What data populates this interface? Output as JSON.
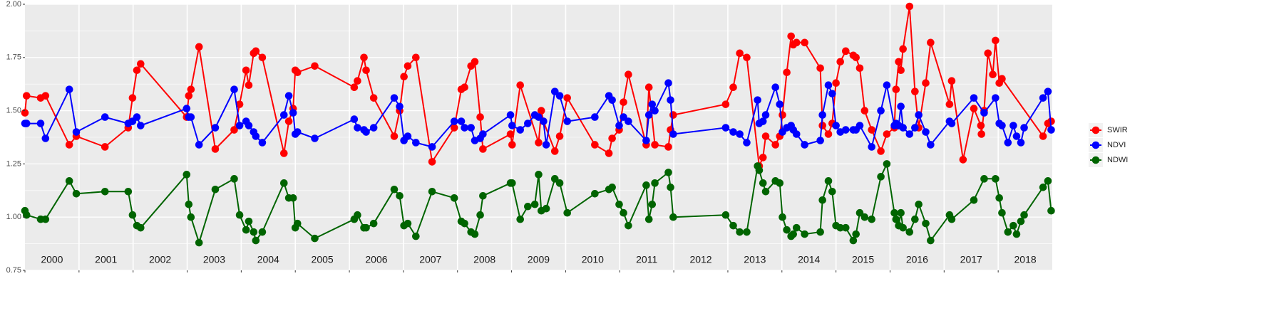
{
  "chart_data": {
    "type": "line",
    "xlim": [
      2000,
      2019
    ],
    "xticks": [
      2000,
      2001,
      2002,
      2003,
      2004,
      2005,
      2006,
      2007,
      2008,
      2009,
      2010,
      2011,
      2012,
      2013,
      2014,
      2015,
      2016,
      2017,
      2018
    ],
    "ylim": [
      0.75,
      2.0
    ],
    "yticks": [
      0.75,
      {
        "value": 1.0,
        "label": "1.00"
      },
      1.25,
      {
        "value": 1.5,
        "label": "1.50"
      },
      1.75,
      {
        "value": 2.0,
        "label": "2.00"
      }
    ],
    "yticks_minor": [
      0.875,
      1.125,
      1.375,
      1.625,
      1.875
    ],
    "grid": true,
    "legend": "right",
    "series": [
      {
        "name": "SWIR",
        "color": "#ff0000",
        "x": [
          2000.0,
          2000.03,
          2000.29,
          2000.38,
          2000.82,
          2000.95,
          2001.48,
          2001.91,
          2001.99,
          2002.07,
          2002.14,
          2002.99,
          2003.03,
          2003.07,
          2003.22,
          2003.52,
          2003.87,
          2003.97,
          2004.09,
          2004.14,
          2004.23,
          2004.27,
          2004.39,
          2004.79,
          2004.88,
          2004.96,
          2005.0,
          2005.04,
          2005.36,
          2006.09,
          2006.15,
          2006.27,
          2006.31,
          2006.45,
          2006.83,
          2006.93,
          2007.01,
          2007.08,
          2007.23,
          2007.53,
          2007.94,
          2008.07,
          2008.13,
          2008.25,
          2008.32,
          2008.42,
          2008.47,
          2008.98,
          2009.01,
          2009.16,
          2009.5,
          2009.55,
          2009.59,
          2009.8,
          2009.89,
          2010.03,
          2010.54,
          2010.8,
          2010.86,
          2010.99,
          2011.07,
          2011.16,
          2011.49,
          2011.54,
          2011.65,
          2011.9,
          2011.94,
          2011.99,
          2012.96,
          2013.1,
          2013.22,
          2013.35,
          2013.58,
          2013.65,
          2013.7,
          2013.88,
          2013.96,
          2014.01,
          2014.09,
          2014.17,
          2014.21,
          2014.27,
          2014.42,
          2014.71,
          2014.75,
          2014.86,
          2014.93,
          2015.0,
          2015.08,
          2015.18,
          2015.32,
          2015.37,
          2015.44,
          2015.53,
          2015.66,
          2015.83,
          2015.94,
          2016.08,
          2016.11,
          2016.16,
          2016.2,
          2016.24,
          2016.36,
          2016.46,
          2016.53,
          2016.66,
          2016.75,
          2017.1,
          2017.14,
          2017.35,
          2017.55,
          2017.68,
          2017.69,
          2017.74,
          2017.81,
          2017.9,
          2017.95,
          2018.02,
          2018.07,
          2018.83,
          2018.92,
          2018.98
        ],
        "values": [
          1.49,
          1.57,
          1.56,
          1.57,
          1.34,
          1.38,
          1.33,
          1.42,
          1.56,
          1.69,
          1.72,
          1.47,
          1.57,
          1.6,
          1.8,
          1.32,
          1.41,
          1.53,
          1.69,
          1.62,
          1.77,
          1.78,
          1.75,
          1.3,
          1.45,
          1.51,
          1.69,
          1.68,
          1.71,
          1.61,
          1.64,
          1.75,
          1.69,
          1.56,
          1.38,
          1.5,
          1.66,
          1.71,
          1.75,
          1.26,
          1.42,
          1.6,
          1.61,
          1.71,
          1.73,
          1.47,
          1.32,
          1.39,
          1.34,
          1.62,
          1.35,
          1.5,
          1.45,
          1.31,
          1.38,
          1.56,
          1.34,
          1.3,
          1.37,
          1.41,
          1.54,
          1.67,
          1.34,
          1.61,
          1.34,
          1.33,
          1.41,
          1.48,
          1.53,
          1.61,
          1.77,
          1.75,
          1.24,
          1.28,
          1.38,
          1.34,
          1.38,
          1.48,
          1.68,
          1.85,
          1.81,
          1.82,
          1.82,
          1.7,
          1.43,
          1.39,
          1.44,
          1.63,
          1.73,
          1.78,
          1.76,
          1.75,
          1.7,
          1.5,
          1.41,
          1.31,
          1.39,
          1.42,
          1.6,
          1.73,
          1.69,
          1.79,
          1.99,
          1.59,
          1.42,
          1.63,
          1.82,
          1.53,
          1.64,
          1.27,
          1.51,
          1.43,
          1.39,
          1.5,
          1.77,
          1.67,
          1.83,
          1.63,
          1.65,
          1.38,
          1.44,
          1.45
        ]
      },
      {
        "name": "NDVI",
        "color": "#0000ff",
        "x": [
          2000.0,
          2000.03,
          2000.29,
          2000.38,
          2000.82,
          2000.95,
          2001.48,
          2001.91,
          2001.99,
          2002.07,
          2002.14,
          2002.99,
          2003.03,
          2003.07,
          2003.22,
          2003.52,
          2003.87,
          2003.97,
          2004.09,
          2004.14,
          2004.23,
          2004.27,
          2004.39,
          2004.79,
          2004.88,
          2004.96,
          2005.0,
          2005.04,
          2005.36,
          2006.09,
          2006.15,
          2006.27,
          2006.31,
          2006.45,
          2006.83,
          2006.93,
          2007.01,
          2007.08,
          2007.23,
          2007.53,
          2007.94,
          2008.07,
          2008.13,
          2008.25,
          2008.32,
          2008.42,
          2008.47,
          2008.98,
          2009.01,
          2009.16,
          2009.3,
          2009.43,
          2009.5,
          2009.59,
          2009.64,
          2009.8,
          2009.89,
          2010.03,
          2010.54,
          2010.8,
          2010.86,
          2010.99,
          2011.07,
          2011.16,
          2011.49,
          2011.54,
          2011.6,
          2011.65,
          2011.9,
          2011.94,
          2011.99,
          2012.96,
          2013.1,
          2013.22,
          2013.35,
          2013.55,
          2013.58,
          2013.65,
          2013.7,
          2013.88,
          2013.96,
          2014.01,
          2014.09,
          2014.17,
          2014.21,
          2014.27,
          2014.42,
          2014.71,
          2014.75,
          2014.86,
          2014.93,
          2015.0,
          2015.08,
          2015.18,
          2015.32,
          2015.37,
          2015.44,
          2015.66,
          2015.83,
          2015.94,
          2016.08,
          2016.11,
          2016.16,
          2016.2,
          2016.24,
          2016.36,
          2016.46,
          2016.53,
          2016.66,
          2016.75,
          2017.1,
          2017.14,
          2017.55,
          2017.74,
          2017.95,
          2018.02,
          2018.07,
          2018.18,
          2018.28,
          2018.34,
          2018.42,
          2018.48,
          2018.83,
          2018.92,
          2018.98
        ],
        "values": [
          1.44,
          1.44,
          1.44,
          1.37,
          1.6,
          1.4,
          1.47,
          1.44,
          1.45,
          1.47,
          1.43,
          1.51,
          1.47,
          1.47,
          1.34,
          1.42,
          1.6,
          1.43,
          1.45,
          1.43,
          1.4,
          1.38,
          1.35,
          1.48,
          1.57,
          1.49,
          1.39,
          1.4,
          1.37,
          1.46,
          1.42,
          1.41,
          1.4,
          1.42,
          1.56,
          1.52,
          1.36,
          1.38,
          1.35,
          1.33,
          1.45,
          1.45,
          1.42,
          1.42,
          1.36,
          1.37,
          1.39,
          1.48,
          1.43,
          1.41,
          1.44,
          1.48,
          1.47,
          1.45,
          1.34,
          1.59,
          1.57,
          1.45,
          1.47,
          1.57,
          1.55,
          1.43,
          1.47,
          1.45,
          1.36,
          1.48,
          1.53,
          1.5,
          1.63,
          1.55,
          1.39,
          1.42,
          1.4,
          1.39,
          1.35,
          1.55,
          1.44,
          1.45,
          1.48,
          1.61,
          1.53,
          1.4,
          1.42,
          1.43,
          1.41,
          1.39,
          1.34,
          1.36,
          1.48,
          1.62,
          1.58,
          1.43,
          1.4,
          1.41,
          1.41,
          1.41,
          1.43,
          1.33,
          1.5,
          1.62,
          1.43,
          1.44,
          1.43,
          1.52,
          1.42,
          1.39,
          1.42,
          1.48,
          1.4,
          1.34,
          1.45,
          1.44,
          1.56,
          1.49,
          1.56,
          1.44,
          1.43,
          1.35,
          1.43,
          1.38,
          1.35,
          1.42,
          1.56,
          1.59,
          1.41
        ]
      },
      {
        "name": "NDWI",
        "color": "#006400",
        "x": [
          2000.0,
          2000.03,
          2000.29,
          2000.38,
          2000.82,
          2000.95,
          2001.48,
          2001.91,
          2001.99,
          2002.07,
          2002.14,
          2002.99,
          2003.03,
          2003.07,
          2003.22,
          2003.52,
          2003.87,
          2003.97,
          2004.09,
          2004.14,
          2004.23,
          2004.27,
          2004.39,
          2004.79,
          2004.88,
          2004.96,
          2005.0,
          2005.04,
          2005.36,
          2006.09,
          2006.15,
          2006.27,
          2006.31,
          2006.45,
          2006.83,
          2006.93,
          2007.01,
          2007.08,
          2007.23,
          2007.53,
          2007.94,
          2008.07,
          2008.13,
          2008.25,
          2008.32,
          2008.42,
          2008.47,
          2008.98,
          2009.01,
          2009.16,
          2009.3,
          2009.43,
          2009.5,
          2009.55,
          2009.64,
          2009.8,
          2009.89,
          2010.03,
          2010.54,
          2010.8,
          2010.86,
          2010.99,
          2011.07,
          2011.16,
          2011.49,
          2011.54,
          2011.6,
          2011.65,
          2011.9,
          2011.94,
          2011.99,
          2012.96,
          2013.1,
          2013.22,
          2013.35,
          2013.55,
          2013.58,
          2013.65,
          2013.7,
          2013.88,
          2013.96,
          2014.01,
          2014.09,
          2014.17,
          2014.21,
          2014.27,
          2014.42,
          2014.71,
          2014.75,
          2014.86,
          2014.93,
          2015.0,
          2015.08,
          2015.18,
          2015.32,
          2015.37,
          2015.44,
          2015.53,
          2015.66,
          2015.83,
          2015.94,
          2016.08,
          2016.11,
          2016.16,
          2016.2,
          2016.24,
          2016.36,
          2016.46,
          2016.53,
          2016.66,
          2016.75,
          2017.1,
          2017.14,
          2017.55,
          2017.74,
          2017.95,
          2018.02,
          2018.07,
          2018.18,
          2018.28,
          2018.34,
          2018.42,
          2018.48,
          2018.83,
          2018.92,
          2018.98
        ],
        "values": [
          1.03,
          1.01,
          0.99,
          0.99,
          1.17,
          1.11,
          1.12,
          1.12,
          1.01,
          0.96,
          0.95,
          1.2,
          1.06,
          1.0,
          0.88,
          1.13,
          1.18,
          1.01,
          0.94,
          0.98,
          0.93,
          0.89,
          0.93,
          1.16,
          1.09,
          1.09,
          0.95,
          0.97,
          0.9,
          0.99,
          1.01,
          0.95,
          0.95,
          0.97,
          1.13,
          1.1,
          0.96,
          0.97,
          0.91,
          1.12,
          1.09,
          0.98,
          0.97,
          0.93,
          0.92,
          1.01,
          1.1,
          1.16,
          1.16,
          0.99,
          1.05,
          1.06,
          1.2,
          1.03,
          1.04,
          1.18,
          1.16,
          1.02,
          1.11,
          1.13,
          1.14,
          1.06,
          1.02,
          0.96,
          1.15,
          0.99,
          1.06,
          1.16,
          1.21,
          1.14,
          1.0,
          1.01,
          0.96,
          0.93,
          0.93,
          1.24,
          1.22,
          1.16,
          1.12,
          1.17,
          1.16,
          1.0,
          0.94,
          0.91,
          0.92,
          0.95,
          0.92,
          0.93,
          1.08,
          1.17,
          1.12,
          0.96,
          0.95,
          0.95,
          0.89,
          0.92,
          1.02,
          1.0,
          0.99,
          1.19,
          1.25,
          1.02,
          0.99,
          0.96,
          1.02,
          0.95,
          0.93,
          0.99,
          1.06,
          0.97,
          0.89,
          1.01,
          0.99,
          1.08,
          1.18,
          1.18,
          1.09,
          1.02,
          0.93,
          0.96,
          0.92,
          0.98,
          1.01,
          1.14,
          1.17,
          1.03
        ]
      }
    ]
  }
}
